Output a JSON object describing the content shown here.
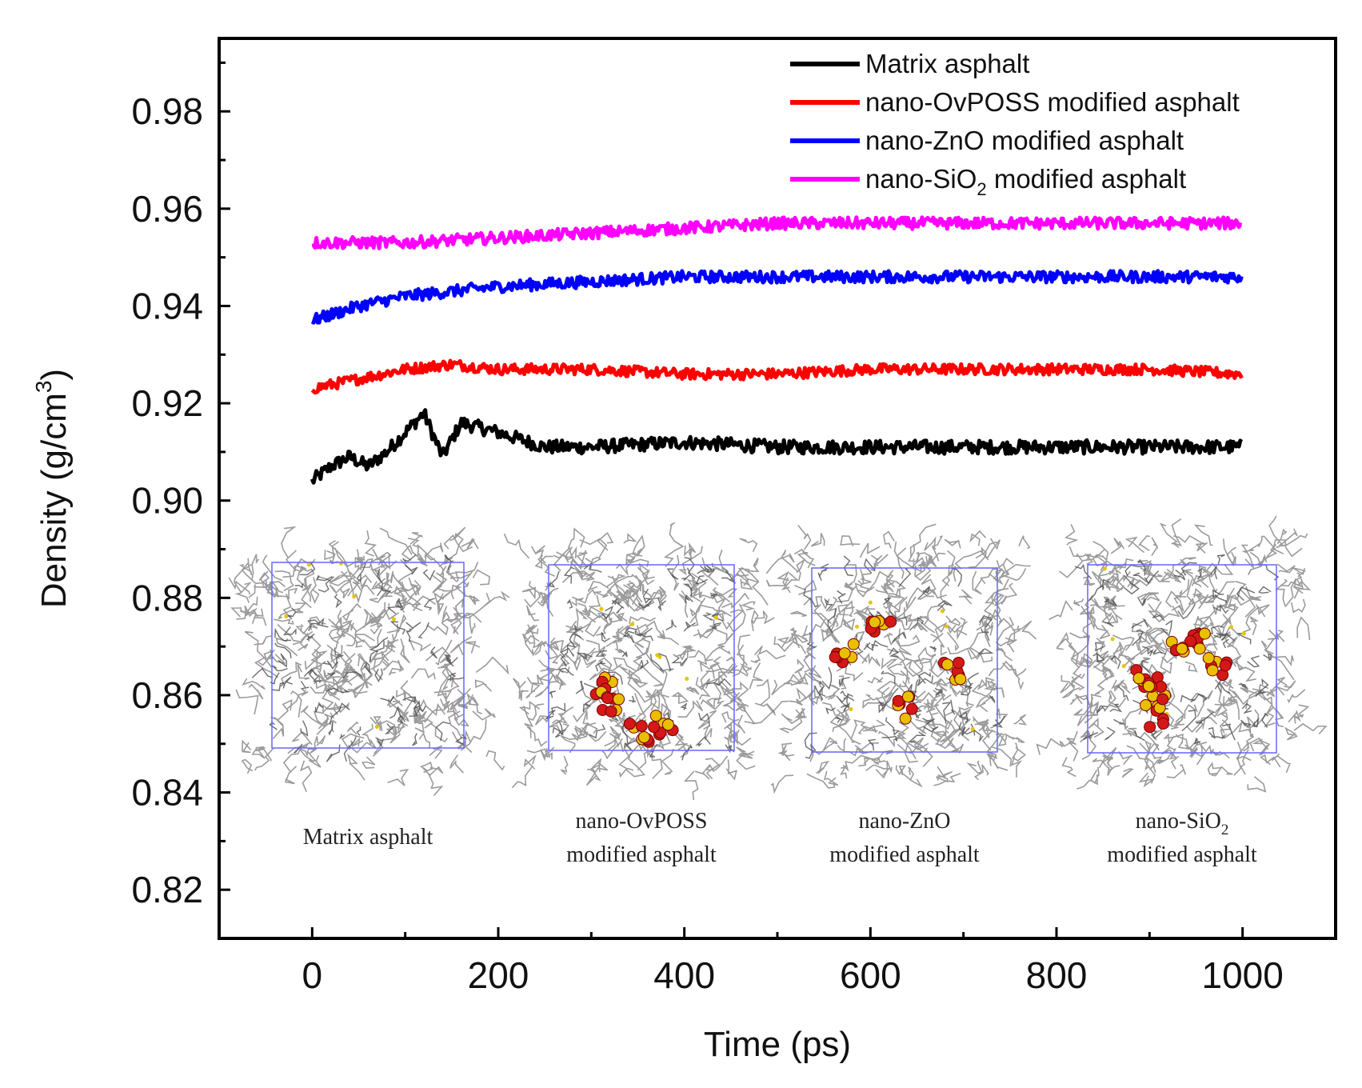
{
  "chart_data": {
    "type": "line",
    "title": "",
    "xlabel": "Time (ps)",
    "ylabel": "Density (g/cm3)",
    "ylabel_parts": {
      "main": "Density (g/cm",
      "sup": "3",
      "close": ")"
    },
    "xlim": [
      -100,
      1100
    ],
    "ylim": [
      0.81,
      0.995
    ],
    "x_ticks": [
      0,
      200,
      400,
      600,
      800,
      1000
    ],
    "x_tick_labels": [
      "0",
      "200",
      "400",
      "600",
      "800",
      "1000"
    ],
    "y_ticks": [
      0.82,
      0.84,
      0.86,
      0.88,
      0.9,
      0.92,
      0.94,
      0.96,
      0.98
    ],
    "y_tick_labels": [
      "0.82",
      "0.84",
      "0.86",
      "0.88",
      "0.90",
      "0.92",
      "0.94",
      "0.96",
      "0.98"
    ],
    "grid": false,
    "legend_position": "top-right",
    "series": [
      {
        "name": "Matrix asphalt",
        "label_main": "Matrix asphalt",
        "label_sub": "",
        "label_tail": "",
        "color": "#000000",
        "x": [
          0,
          20,
          40,
          60,
          80,
          100,
          120,
          140,
          160,
          180,
          200,
          250,
          300,
          400,
          500,
          600,
          700,
          800,
          900,
          1000
        ],
        "y": [
          0.904,
          0.907,
          0.909,
          0.907,
          0.91,
          0.914,
          0.918,
          0.909,
          0.916,
          0.915,
          0.914,
          0.911,
          0.911,
          0.912,
          0.911,
          0.911,
          0.911,
          0.911,
          0.911,
          0.911
        ],
        "noise": 0.0014
      },
      {
        "name": "nano-OvPOSS modified asphalt",
        "label_main": "nano-OvPOSS modified asphalt",
        "label_sub": "",
        "label_tail": "",
        "color": "#ff0000",
        "x": [
          0,
          50,
          100,
          150,
          200,
          300,
          400,
          500,
          600,
          700,
          800,
          900,
          1000
        ],
        "y": [
          0.923,
          0.925,
          0.927,
          0.928,
          0.927,
          0.927,
          0.926,
          0.926,
          0.927,
          0.927,
          0.927,
          0.927,
          0.926
        ],
        "noise": 0.0011
      },
      {
        "name": "nano-ZnO modified asphalt",
        "label_main": "nano-ZnO modified asphalt",
        "label_sub": "",
        "label_tail": "",
        "color": "#0000ff",
        "x": [
          0,
          50,
          100,
          150,
          200,
          300,
          400,
          500,
          600,
          700,
          800,
          900,
          1000
        ],
        "y": [
          0.937,
          0.94,
          0.942,
          0.943,
          0.944,
          0.945,
          0.946,
          0.946,
          0.946,
          0.946,
          0.946,
          0.946,
          0.946
        ],
        "noise": 0.0012
      },
      {
        "name": "nano-SiO2 modified asphalt",
        "label_main": "nano-SiO",
        "label_sub": "2",
        "label_tail": " modified asphalt",
        "color": "#ff00ff",
        "x": [
          0,
          100,
          200,
          300,
          400,
          500,
          600,
          700,
          800,
          900,
          1000
        ],
        "y": [
          0.953,
          0.953,
          0.954,
          0.955,
          0.956,
          0.957,
          0.957,
          0.957,
          0.957,
          0.957,
          0.957
        ],
        "noise": 0.0012
      }
    ],
    "insets": [
      {
        "caption_lines": [
          "Matrix asphalt"
        ],
        "caption_sub": "",
        "particle_count": 0
      },
      {
        "caption_lines": [
          "nano-OvPOSS",
          "modified asphalt"
        ],
        "caption_sub": "",
        "particle_count": 4
      },
      {
        "caption_lines": [
          "nano-ZnO",
          "modified asphalt"
        ],
        "caption_sub": "",
        "particle_count": 4
      },
      {
        "caption_lines": [
          "nano-SiO",
          "modified asphalt"
        ],
        "caption_sub": "2",
        "particle_count": 6
      }
    ]
  }
}
